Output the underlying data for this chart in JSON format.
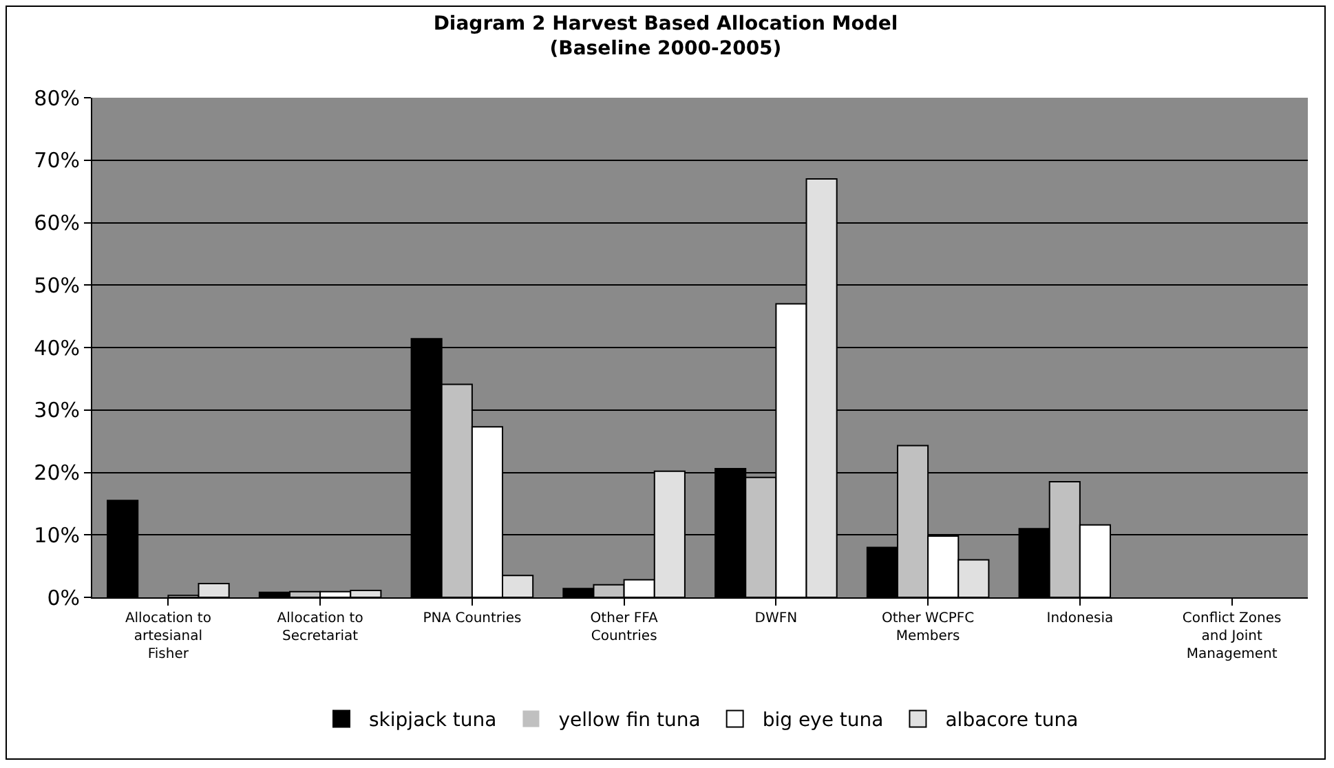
{
  "chart_data": {
    "type": "bar",
    "title": "Diagram 2 Harvest Based Allocation Model\n(Baseline 2000-2005)",
    "categories": [
      "Allocation to\nartesianal\nFisher",
      "Allocation to\nSecretariat",
      "PNA Countries",
      "Other FFA\nCountries",
      "DWFN",
      "Other WCPFC\nMembers",
      "Indonesia",
      "Conflict Zones\nand Joint\nManagement"
    ],
    "series": [
      {
        "name": "skipjack tuna",
        "color": "#000000",
        "values": [
          15.5,
          0.8,
          41.4,
          1.4,
          20.6,
          8.0,
          11.0,
          0
        ]
      },
      {
        "name": "yellow fin tuna",
        "color": "#c0c0c0",
        "values": [
          0,
          0.9,
          34.1,
          2.0,
          19.2,
          24.3,
          18.5,
          0
        ]
      },
      {
        "name": "big eye tuna",
        "color": "#ffffff",
        "values": [
          0.3,
          0.9,
          27.3,
          2.8,
          47,
          9.8,
          11.6,
          0
        ]
      },
      {
        "name": "albacore tuna",
        "color": "#e0e0e0",
        "values": [
          2.2,
          1.1,
          3.5,
          20.2,
          67,
          6.0,
          0,
          0
        ]
      }
    ],
    "ylim": [
      0,
      80
    ],
    "yticks": [
      {
        "value": 0,
        "label": "0%"
      },
      {
        "value": 10,
        "label": "10%"
      },
      {
        "value": 20,
        "label": "20%"
      },
      {
        "value": 30,
        "label": "30%"
      },
      {
        "value": 40,
        "label": "40%"
      },
      {
        "value": 50,
        "label": "50%"
      },
      {
        "value": 60,
        "label": "60%"
      },
      {
        "value": 70,
        "label": "70%"
      },
      {
        "value": 80,
        "label": "80%"
      }
    ],
    "grid": "y",
    "legend": "bottom"
  }
}
